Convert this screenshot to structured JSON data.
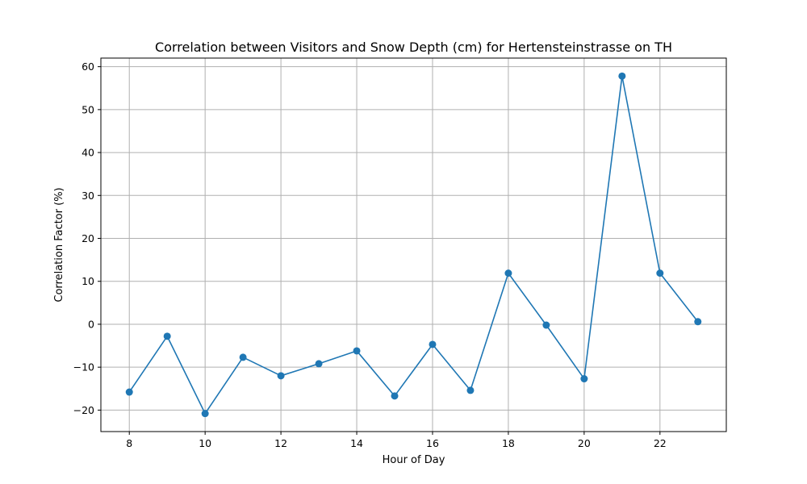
{
  "chart_data": {
    "type": "line",
    "title": "Correlation between Visitors and Snow Depth (cm) for Hertensteinstrasse on TH",
    "xlabel": "Hour of Day",
    "ylabel": "Correlation Factor (%)",
    "x": [
      8,
      9,
      10,
      11,
      12,
      13,
      14,
      15,
      16,
      17,
      18,
      19,
      20,
      21,
      22,
      23
    ],
    "series": [
      {
        "values": [
          -15.8,
          -2.8,
          -20.8,
          -7.7,
          -12.0,
          -9.2,
          -6.2,
          -16.7,
          -4.7,
          -15.4,
          11.9,
          -0.2,
          -12.7,
          57.8,
          11.9,
          0.6
        ]
      }
    ],
    "xlim": [
      7.25,
      23.75
    ],
    "ylim": [
      -25,
      62
    ],
    "xticks": [
      8,
      10,
      12,
      14,
      16,
      18,
      20,
      22
    ],
    "yticks": [
      -20,
      -10,
      0,
      10,
      20,
      30,
      40,
      50,
      60
    ],
    "xtick_labels": [
      "8",
      "10",
      "12",
      "14",
      "16",
      "18",
      "20",
      "22"
    ],
    "ytick_labels": [
      "−20",
      "−10",
      "0",
      "10",
      "20",
      "30",
      "40",
      "50",
      "60"
    ],
    "grid": true,
    "colors": {
      "line": "#1f77b4",
      "grid": "#b0b0b0",
      "axis": "#000000"
    }
  }
}
